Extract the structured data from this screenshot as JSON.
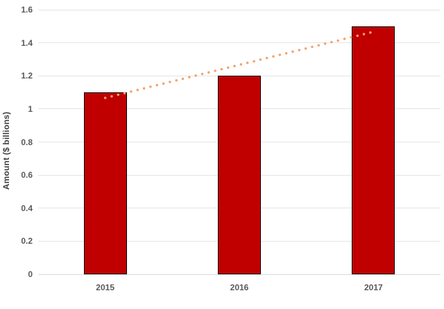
{
  "chart_data": {
    "type": "bar",
    "title": "",
    "categories": [
      "2015",
      "2016",
      "2017"
    ],
    "series": [
      {
        "name": "Amount",
        "values": [
          1.1,
          1.2,
          1.5
        ]
      }
    ],
    "xlabel": "",
    "ylabel": "Amount ($ billions)",
    "ylim": [
      0,
      1.6
    ],
    "ytick_labels": [
      "0",
      "0.2",
      "0.4",
      "0.6",
      "0.8",
      "1",
      "1.2",
      "1.4",
      "1.6"
    ],
    "grid": "horizontal",
    "legend": false,
    "trendline": {
      "type": "linear",
      "style": "dotted",
      "endpoint_values": [
        1.067,
        1.467
      ]
    },
    "colors": {
      "bar_fill": "#c00000",
      "bar_border": "#000000",
      "trendline": "#f2a26e",
      "gridline": "#e4e4e4",
      "axis_line": "#d9d9d9",
      "tick_label": "#595959",
      "axis_title": "#404040",
      "background": "#ffffff"
    }
  }
}
